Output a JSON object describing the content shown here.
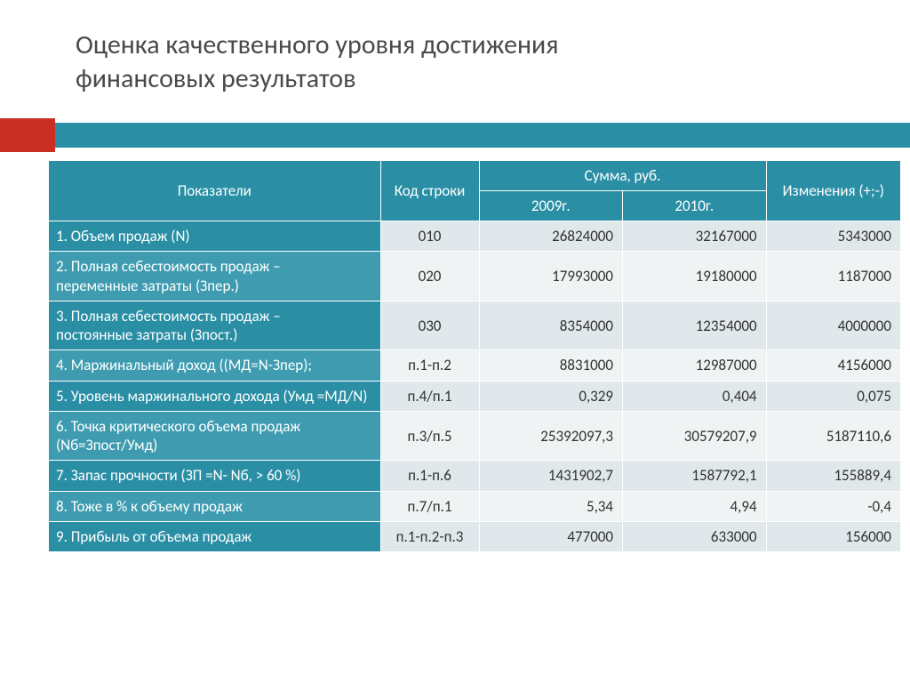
{
  "title_line1": "Оценка качественного уровня достижения",
  "title_line2": "финансовых результатов",
  "colors": {
    "accent": "#2a8fa5",
    "accent_light": "#3f9cb0",
    "red": "#c93023",
    "band_a": "#e0e8eb",
    "band_b": "#eff3f4",
    "text_title": "#4a4a4a"
  },
  "table": {
    "headers": {
      "indicators": "Показатели",
      "code": "Код строки",
      "sum_group": "Сумма, руб.",
      "year1": "2009г.",
      "year2": "2010г.",
      "changes": "Изменения (+;-)"
    },
    "rows": [
      {
        "label": "1. Объем продаж (N)",
        "code": "010",
        "y1": "26824000",
        "y2": "32167000",
        "chg": "5343000",
        "band": "a"
      },
      {
        "label": "2. Полная себестоимость продаж – \nпеременные затраты (Зпер.)",
        "code": "020",
        "y1": "17993000",
        "y2": "19180000",
        "chg": "1187000",
        "band": "b",
        "pad": true
      },
      {
        "label": "3. Полная себестоимость продаж – \nпостоянные затраты (Зпост.)",
        "code": "030",
        "y1": "8354000",
        "y2": "12354000",
        "chg": "4000000",
        "band": "a",
        "pad": true
      },
      {
        "label": "4. Маржинальный доход ((МД=N-Зпер);",
        "code": "п.1-п.2",
        "y1": "8831000",
        "y2": "12987000",
        "chg": "4156000",
        "band": "b"
      },
      {
        "label": "5. Уровень маржинального дохода (Умд =МД/N)",
        "code": "п.4/п.1",
        "y1": "0,329",
        "y2": "0,404",
        "chg": "0,075",
        "band": "a"
      },
      {
        "label": "6. Точка критического объема продаж (Nб=Зпост/Умд)",
        "code": "п.3/п.5",
        "y1": "25392097,3",
        "y2": "30579207,9",
        "chg": "5187110,6",
        "band": "b"
      },
      {
        "label": "7. Запас прочности (ЗП =N- Nб, > 60 %)",
        "code": "п.1-п.6",
        "y1": "1431902,7",
        "y2": "1587792,1",
        "chg": "155889,4",
        "band": "a"
      },
      {
        "label": "8. Тоже в % к объему продаж",
        "code": "п.7/п.1",
        "y1": "5,34",
        "y2": "4,94",
        "chg": "-0,4",
        "band": "b"
      },
      {
        "label": "9. Прибыль от объема продаж",
        "code": "п.1-п.2-п.3",
        "y1": "477000",
        "y2": "633000",
        "chg": "156000",
        "band": "a"
      }
    ]
  }
}
